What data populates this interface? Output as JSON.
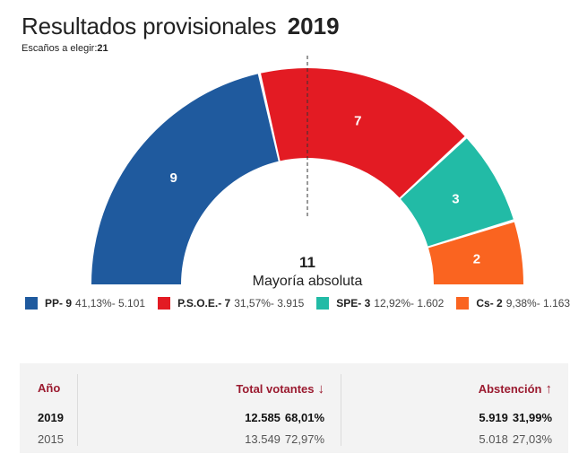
{
  "header": {
    "title": "Resultados provisionales",
    "year": "2019",
    "seats_label": "Escaños a elegir:",
    "seats_value": "21"
  },
  "chart_data": {
    "type": "hemicycle",
    "total_seats": 21,
    "majority": {
      "value": "11",
      "label": "Mayoría absoluta"
    },
    "series": [
      {
        "name": "PP",
        "seats": 9,
        "legend": "PP- 9",
        "detail": "41,13%- 5.101",
        "color": "#1f5a9e"
      },
      {
        "name": "P.S.O.E.",
        "seats": 7,
        "legend": "P.S.O.E.- 7",
        "detail": "31,57%- 3.915",
        "color": "#e31b23"
      },
      {
        "name": "SPE",
        "seats": 3,
        "legend": "SPE- 3",
        "detail": "12,92%- 1.602",
        "color": "#22bba6"
      },
      {
        "name": "Cs",
        "seats": 2,
        "legend": "Cs- 2",
        "detail": "9,38%- 1.163",
        "color": "#fa6420"
      }
    ]
  },
  "table": {
    "headers": {
      "year": "Año",
      "votes": "Total votantes",
      "votes_arrow": "↓",
      "abstention": "Abstención",
      "abstention_arrow": "↑"
    },
    "rows": [
      {
        "year": "2019",
        "votes": "12.585",
        "votes_pct": "68,01%",
        "abst": "5.919",
        "abst_pct": "31,99%"
      },
      {
        "year": "2015",
        "votes": "13.549",
        "votes_pct": "72,97%",
        "abst": "5.018",
        "abst_pct": "27,03%"
      }
    ]
  }
}
